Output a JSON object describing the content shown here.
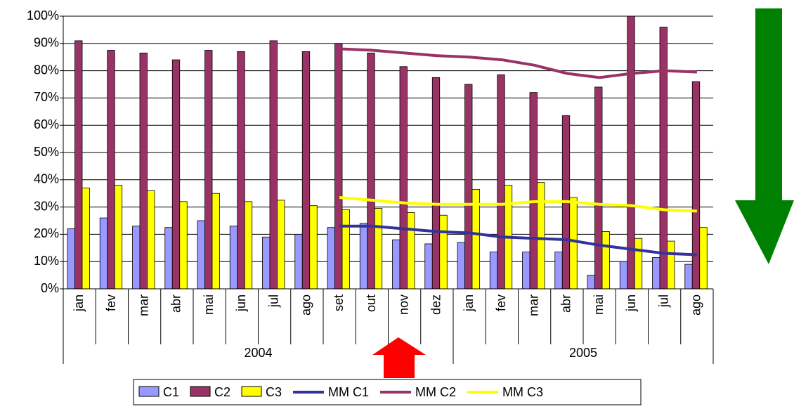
{
  "chart_data": {
    "type": "bar",
    "category_groups": [
      {
        "label": "2004",
        "categories": [
          "jan",
          "fev",
          "mar",
          "abr",
          "mai",
          "jun",
          "jul",
          "ago",
          "set",
          "out",
          "nov",
          "dez"
        ]
      },
      {
        "label": "2005",
        "categories": [
          "jan",
          "fev",
          "mar",
          "abr",
          "mai",
          "jun",
          "jul",
          "ago"
        ]
      }
    ],
    "series": [
      {
        "name": "C1",
        "type": "bar",
        "color": "#9999ff",
        "values": [
          22,
          26,
          23,
          22.5,
          25,
          23,
          19,
          20,
          22.5,
          24,
          18,
          16.5,
          17,
          13.5,
          13.5,
          13.5,
          5,
          10,
          11.5,
          9
        ]
      },
      {
        "name": "C2",
        "type": "bar",
        "color": "#993366",
        "values": [
          91,
          87.5,
          86.5,
          84,
          87.5,
          87,
          91,
          87,
          90,
          86.5,
          81.5,
          77.5,
          75,
          78.5,
          72,
          63.5,
          74,
          100,
          96,
          76
        ]
      },
      {
        "name": "C3",
        "type": "bar",
        "color": "#ffff00",
        "values": [
          37,
          38,
          36,
          32,
          35,
          32,
          32.5,
          30.5,
          29,
          29.5,
          28,
          27,
          36.5,
          38,
          39,
          33.5,
          21,
          18.5,
          17.5,
          22.5
        ]
      },
      {
        "name": "MM C1",
        "type": "line",
        "color": "#333399",
        "values": [
          null,
          null,
          null,
          null,
          null,
          null,
          null,
          null,
          23,
          23,
          22,
          21,
          20.5,
          19,
          18.5,
          18,
          16,
          14.5,
          13,
          12.5
        ]
      },
      {
        "name": "MM C2",
        "type": "line",
        "color": "#993366",
        "values": [
          null,
          null,
          null,
          null,
          null,
          null,
          null,
          null,
          88,
          87.5,
          86.5,
          85.5,
          85,
          84,
          82,
          79,
          77.5,
          79,
          80,
          79.5
        ]
      },
      {
        "name": "MM C3",
        "type": "line",
        "color": "#ffff00",
        "values": [
          null,
          null,
          null,
          null,
          null,
          null,
          null,
          null,
          33.5,
          32.5,
          31.5,
          31,
          31,
          31,
          32,
          32,
          31,
          30.5,
          29,
          28.5
        ]
      }
    ],
    "ylim": [
      0,
      100
    ],
    "yticks": [
      {
        "value": 0,
        "label": "0%"
      },
      {
        "value": 10,
        "label": "10%"
      },
      {
        "value": 20,
        "label": "20%"
      },
      {
        "value": 30,
        "label": "30%"
      },
      {
        "value": 40,
        "label": "40%"
      },
      {
        "value": 50,
        "label": "50%"
      },
      {
        "value": 60,
        "label": "60%"
      },
      {
        "value": 70,
        "label": "70%"
      },
      {
        "value": 80,
        "label": "80%"
      },
      {
        "value": 90,
        "label": "90%"
      },
      {
        "value": 100,
        "label": "100%"
      }
    ],
    "grid": true,
    "legend": "bottom"
  }
}
